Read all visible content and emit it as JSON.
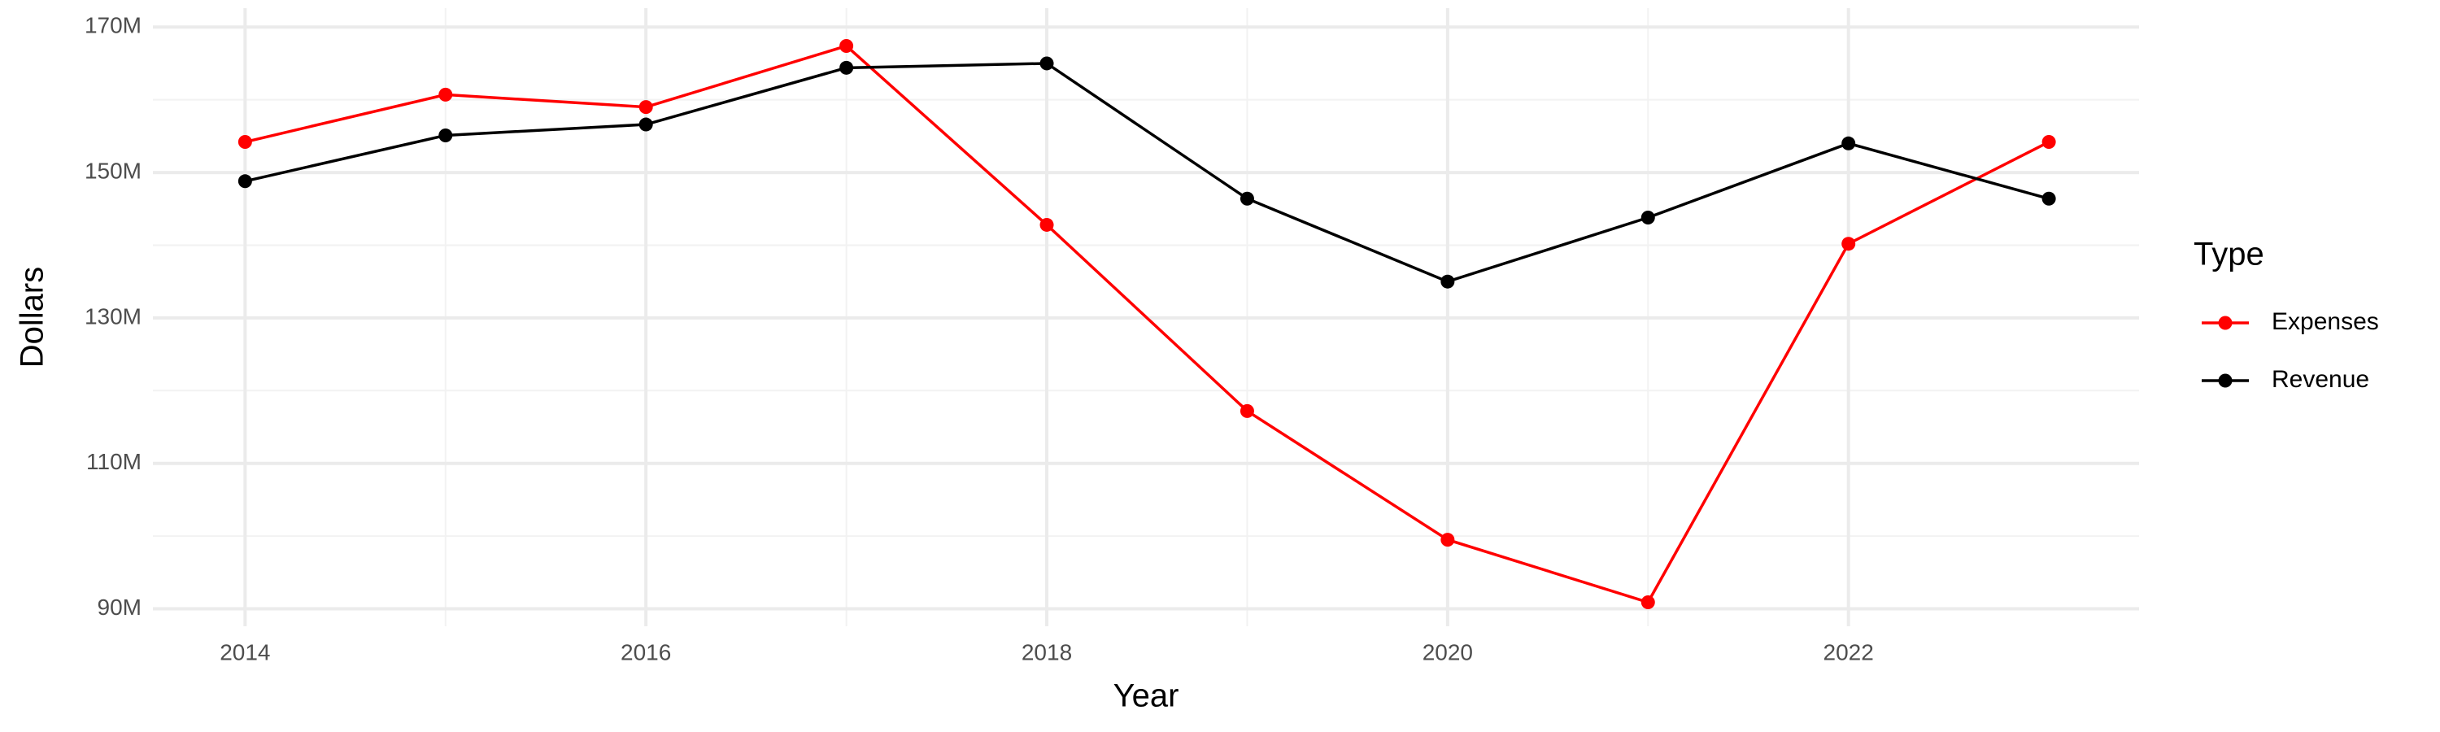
{
  "chart_data": {
    "type": "line",
    "x_label": "Year",
    "y_label": "Dollars",
    "legend_title": "Type",
    "legend_position": "right",
    "x": [
      2014,
      2015,
      2016,
      2017,
      2018,
      2019,
      2020,
      2021,
      2022,
      2023
    ],
    "series": [
      {
        "name": "Expenses",
        "color": "#ff0000",
        "values": [
          154200000,
          160700000,
          159000000,
          167400000,
          142800000,
          117200000,
          99500000,
          90900000,
          140200000,
          154200000
        ]
      },
      {
        "name": "Revenue",
        "color": "#000000",
        "values": [
          148800000,
          155100000,
          156600000,
          164400000,
          165000000,
          146400000,
          135000000,
          143800000,
          154000000,
          146400000
        ]
      }
    ],
    "xlim": [
      2013.54,
      2023.45
    ],
    "xticks": [
      2014,
      2016,
      2018,
      2020,
      2022
    ],
    "ylim": [
      87600000,
      172600000
    ],
    "yticks": [
      {
        "value": 90000000,
        "label": "90M"
      },
      {
        "value": 110000000,
        "label": "110M"
      },
      {
        "value": 130000000,
        "label": "130M"
      },
      {
        "value": 150000000,
        "label": "150M"
      },
      {
        "value": 170000000,
        "label": "170M"
      }
    ],
    "grid": true,
    "minor_grid": true
  }
}
